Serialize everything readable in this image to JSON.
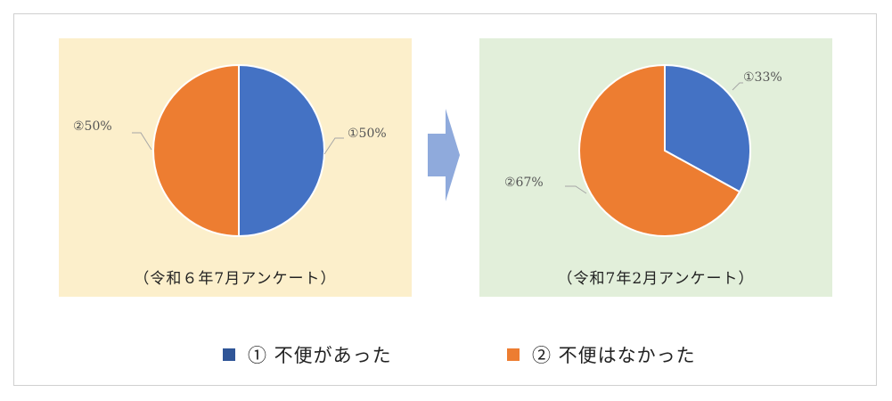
{
  "chart_data": [
    {
      "type": "pie",
      "title": "（令和６年7月アンケート）",
      "categories": [
        "①",
        "②"
      ],
      "values": [
        50,
        50
      ],
      "labels": [
        "①50%",
        "②50%"
      ],
      "colors": [
        "#4472c4",
        "#ed7d31"
      ],
      "background": "#fcefcb"
    },
    {
      "type": "pie",
      "title": "（令和7年2月アンケート）",
      "categories": [
        "①",
        "②"
      ],
      "values": [
        33,
        67
      ],
      "labels": [
        "①33%",
        "②67%"
      ],
      "colors": [
        "#4472c4",
        "#ed7d31"
      ],
      "background": "#e2efda"
    }
  ],
  "legend": {
    "items": [
      {
        "label": "①  不便があった",
        "color": "#2f5597"
      },
      {
        "label": "②  不便はなかった",
        "color": "#ed7d31"
      }
    ]
  },
  "arrow": {
    "icon": "right-arrow-icon",
    "color": "#8faadc"
  }
}
